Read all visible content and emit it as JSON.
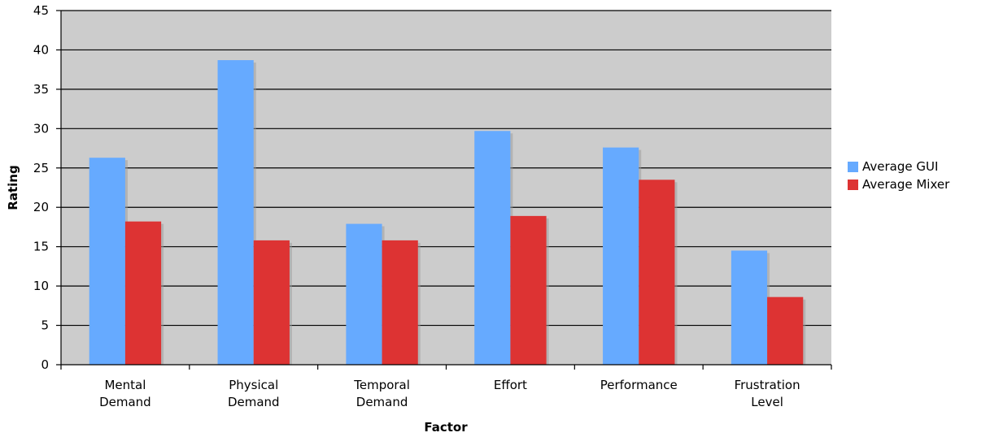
{
  "chart_data": {
    "type": "bar",
    "title": "",
    "xlabel": "Factor",
    "ylabel": "Rating",
    "ylim": [
      0,
      45
    ],
    "ytick_step": 5,
    "grid": true,
    "legend_position": "right",
    "plot_background": "#cccccc",
    "categories": [
      [
        "Mental",
        "Demand"
      ],
      [
        "Physical",
        "Demand"
      ],
      [
        "Temporal",
        "Demand"
      ],
      [
        "Effort"
      ],
      [
        "Performance"
      ],
      [
        "Frustration",
        "Level"
      ]
    ],
    "series": [
      {
        "name": "Average GUI",
        "color": "#66aaff",
        "values": [
          26.3,
          38.7,
          17.9,
          29.7,
          27.6,
          14.5
        ]
      },
      {
        "name": "Average Mixer",
        "color": "#dd3333",
        "values": [
          18.2,
          15.8,
          15.8,
          18.9,
          23.5,
          8.6
        ]
      }
    ]
  }
}
